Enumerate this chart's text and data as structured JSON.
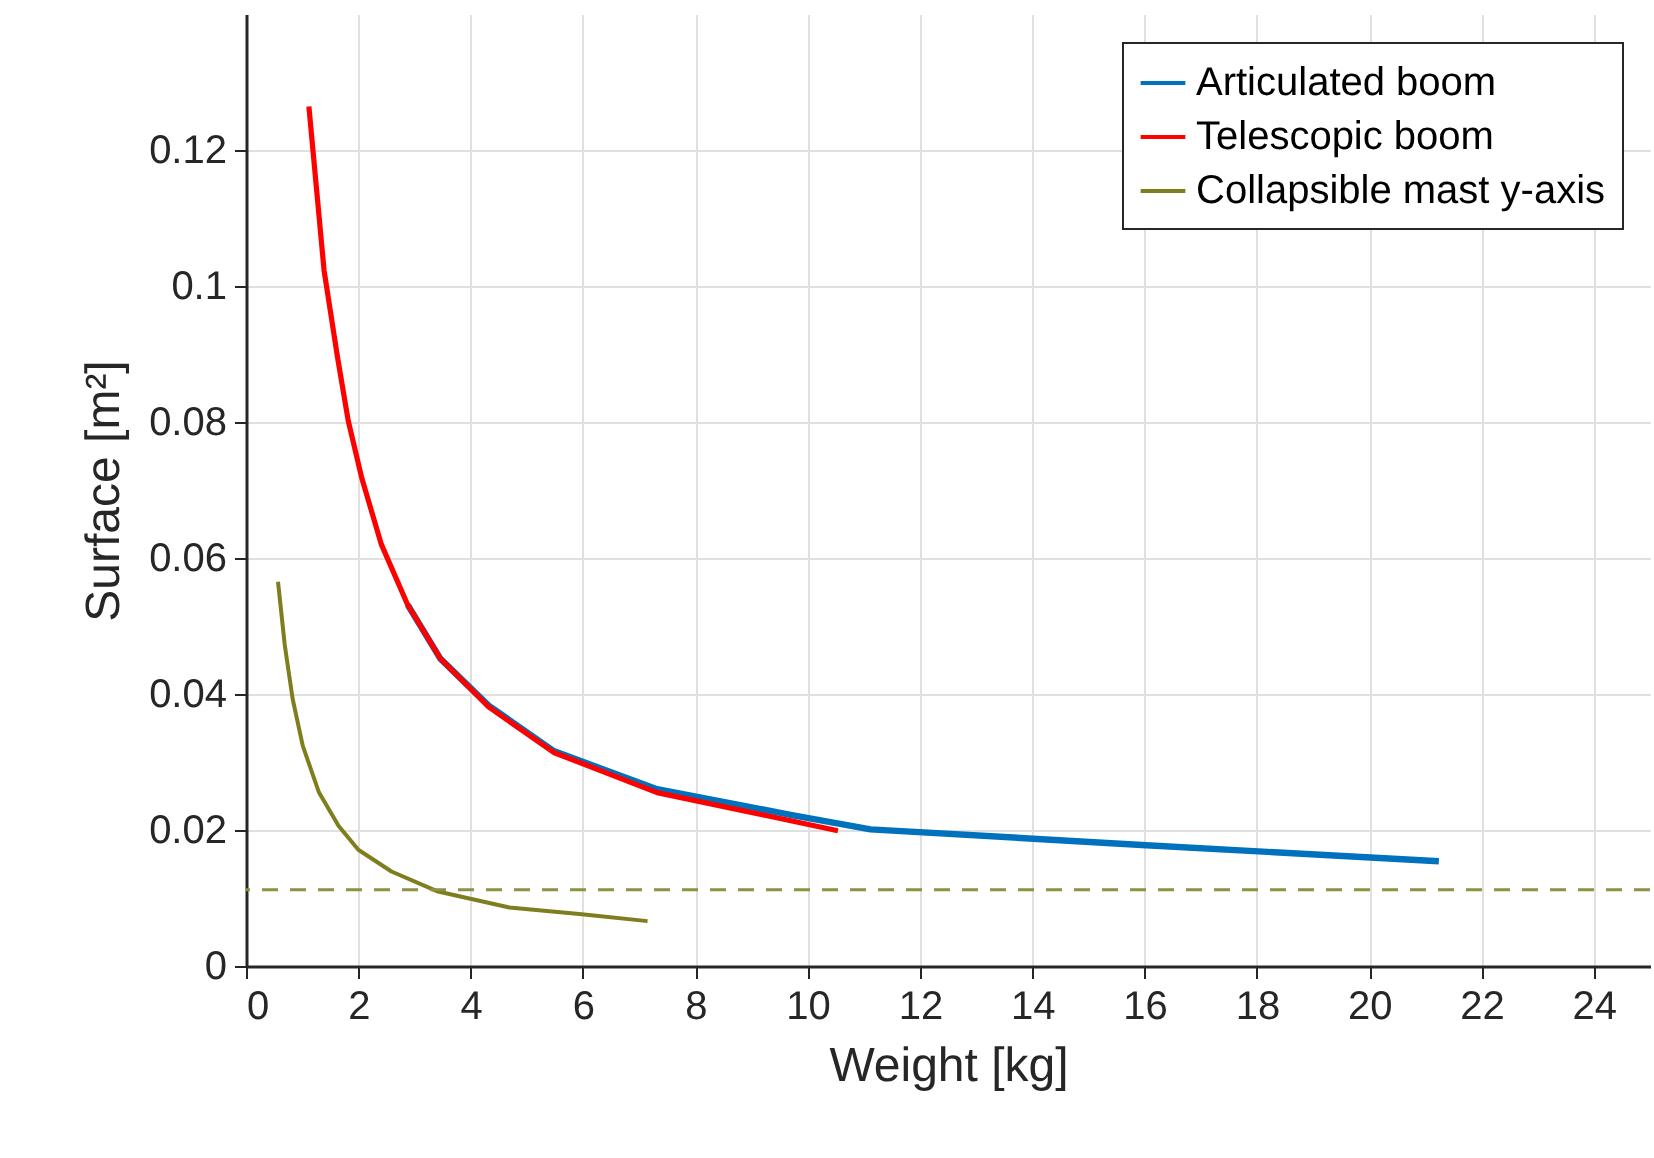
{
  "chart_data": {
    "type": "line",
    "xlabel": "Weight [kg]",
    "ylabel": "Surface [m²]",
    "xlim": [
      0,
      25
    ],
    "ylim": [
      0,
      0.14
    ],
    "xticks": [
      0,
      2,
      4,
      6,
      8,
      10,
      12,
      14,
      16,
      18,
      20,
      22,
      24
    ],
    "yticks": [
      0,
      0.02,
      0.04,
      0.06,
      0.08,
      0.1,
      0.12
    ],
    "grid": true,
    "legend": "top right",
    "line_style": "solid",
    "marker": "none",
    "series": [
      {
        "name": "Articulated boom",
        "color": "#0072bd",
        "x": [
          2.88,
          3.46,
          4.32,
          5.48,
          7.32,
          9.72,
          11.12,
          15.95,
          21.24
        ],
        "values": [
          0.0531,
          0.0452,
          0.0383,
          0.0316,
          0.026,
          0.0222,
          0.0201,
          0.0178,
          0.0154
        ]
      },
      {
        "name": "Telescopic boom",
        "color": "#ff0000",
        "x": [
          1.12,
          1.39,
          1.63,
          1.82,
          2.06,
          2.41,
          2.88,
          3.46,
          4.32,
          5.48,
          7.32,
          10.54
        ],
        "values": [
          0.1264,
          0.1023,
          0.0895,
          0.0802,
          0.0718,
          0.062,
          0.0531,
          0.0452,
          0.0381,
          0.0314,
          0.0255,
          0.0199
        ]
      },
      {
        "name": "Collapsible mast y-axis",
        "color": "#7e7e1e",
        "x": [
          0.57,
          0.69,
          0.83,
          1.01,
          1.3,
          1.65,
          2.0,
          2.59,
          3.4,
          4.69,
          5.98,
          7.15
        ],
        "values": [
          0.0565,
          0.0472,
          0.0393,
          0.0324,
          0.0255,
          0.0206,
          0.0171,
          0.0139,
          0.011,
          0.0086,
          0.0076,
          0.0066
        ]
      }
    ],
    "ref_lines": [
      {
        "axis": "y",
        "value": 0.0112,
        "color": "#8f8f45",
        "line_style": "dashed"
      }
    ]
  }
}
